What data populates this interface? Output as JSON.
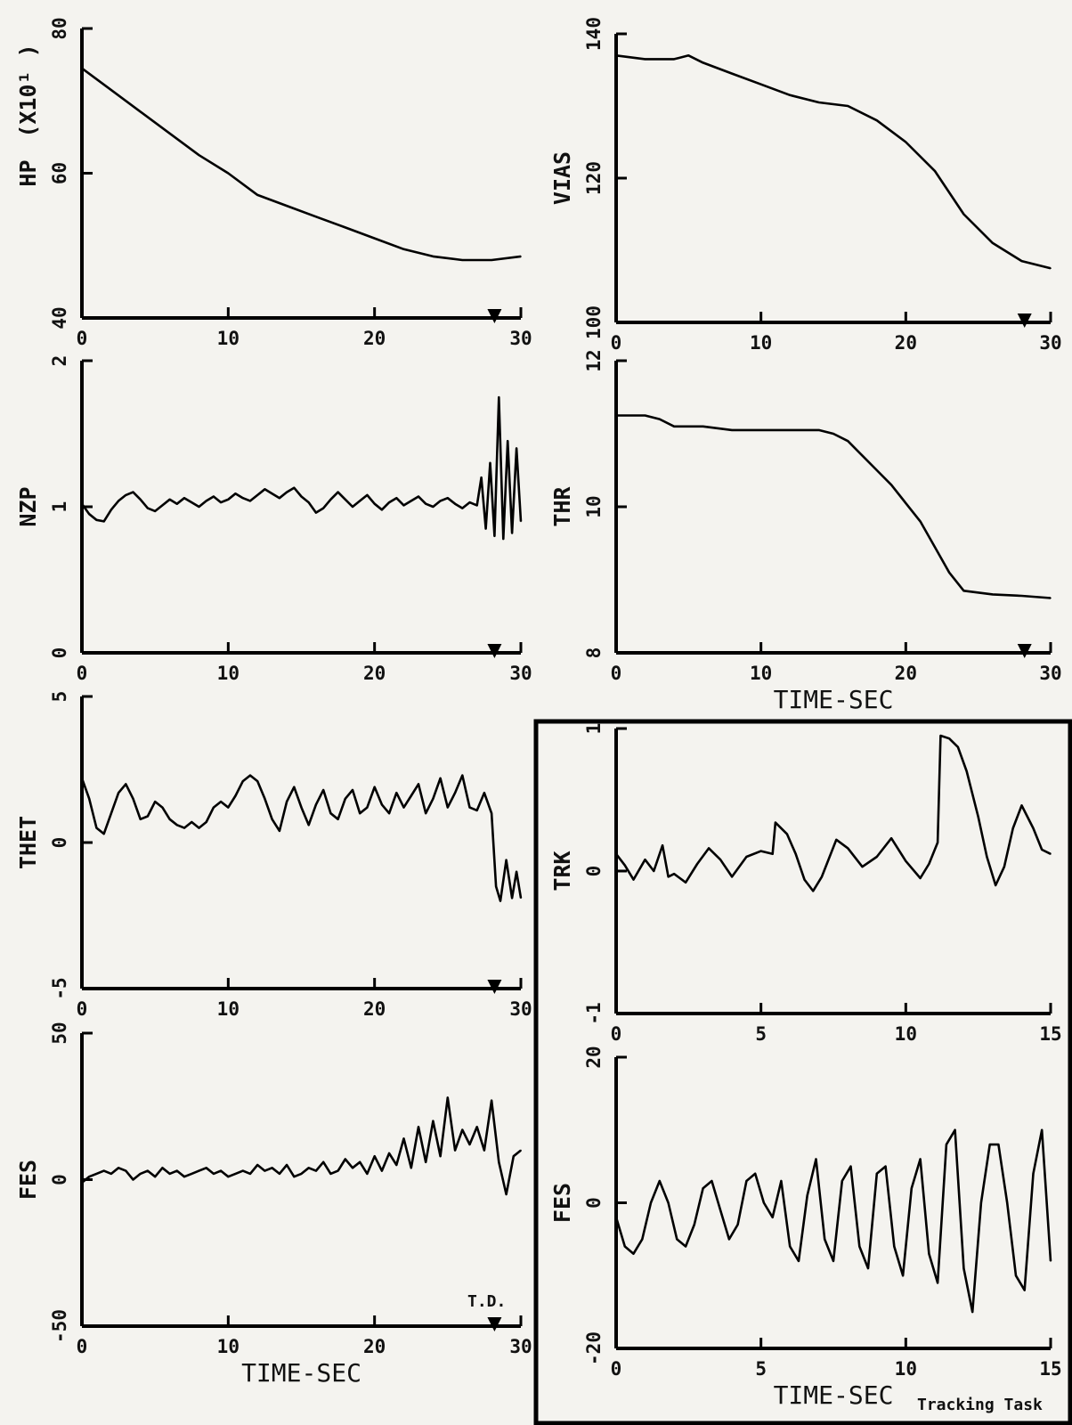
{
  "figure": {
    "inset_note": "Tracking Task",
    "td_label": "T.D."
  },
  "chart_data": [
    {
      "id": "hp",
      "type": "line",
      "ylabel": "HP",
      "ylabel_suffix": "(X10¹ )",
      "xlabel": "",
      "xlim": [
        0,
        30
      ],
      "ylim": [
        40,
        80
      ],
      "xticks": [
        "0",
        "10",
        "20",
        "30"
      ],
      "yticks": [
        "40",
        "60",
        "80"
      ],
      "touchdown_marker_x": 28.2,
      "grid": false,
      "x": [
        0,
        2,
        4,
        6,
        8,
        10,
        12,
        14,
        16,
        18,
        20,
        22,
        24,
        26,
        28,
        30
      ],
      "y": [
        74.5,
        71.5,
        68.5,
        65.5,
        62.5,
        60,
        57,
        55.5,
        54,
        52.5,
        51,
        49.5,
        48.5,
        48,
        48,
        48.5
      ]
    },
    {
      "id": "vias",
      "type": "line",
      "ylabel": "VIAS",
      "xlabel": "",
      "xlim": [
        0,
        30
      ],
      "ylim": [
        100,
        140
      ],
      "xticks": [
        "0",
        "10",
        "20",
        "30"
      ],
      "yticks": [
        "100",
        "120",
        "140"
      ],
      "touchdown_marker_x": 28.2,
      "grid": false,
      "x": [
        0,
        2,
        4,
        5,
        6,
        8,
        10,
        12,
        14,
        16,
        18,
        20,
        22,
        24,
        26,
        28,
        30
      ],
      "y": [
        137,
        136.5,
        136.5,
        137,
        136,
        134.5,
        133,
        131.5,
        130.5,
        130,
        128,
        125,
        121,
        115,
        111,
        108.5,
        107.5
      ]
    },
    {
      "id": "nzp",
      "type": "line",
      "ylabel": "NZP",
      "xlabel": "",
      "xlim": [
        0,
        30
      ],
      "ylim": [
        0,
        2
      ],
      "xticks": [
        "0",
        "10",
        "20",
        "30"
      ],
      "yticks": [
        "0",
        "1",
        "2"
      ],
      "touchdown_marker_x": 28.2,
      "grid": false,
      "x": [
        0,
        0.5,
        1,
        1.5,
        2,
        2.5,
        3,
        3.5,
        4,
        4.5,
        5,
        5.5,
        6,
        6.5,
        7,
        7.5,
        8,
        8.5,
        9,
        9.5,
        10,
        10.5,
        11,
        11.5,
        12,
        12.5,
        13,
        13.5,
        14,
        14.5,
        15,
        15.5,
        16,
        16.5,
        17,
        17.5,
        18,
        18.5,
        19,
        19.5,
        20,
        20.5,
        21,
        21.5,
        22,
        22.5,
        23,
        23.5,
        24,
        24.5,
        25,
        25.5,
        26,
        26.5,
        27,
        27.3,
        27.6,
        27.9,
        28.2,
        28.5,
        28.8,
        29.1,
        29.4,
        29.7,
        30
      ],
      "y": [
        1.02,
        0.95,
        0.91,
        0.9,
        0.98,
        1.04,
        1.08,
        1.1,
        1.05,
        0.99,
        0.97,
        1.01,
        1.05,
        1.02,
        1.06,
        1.03,
        1.0,
        1.04,
        1.07,
        1.03,
        1.05,
        1.09,
        1.06,
        1.04,
        1.08,
        1.12,
        1.09,
        1.06,
        1.1,
        1.13,
        1.07,
        1.03,
        0.96,
        0.99,
        1.05,
        1.1,
        1.05,
        1.0,
        1.04,
        1.08,
        1.02,
        0.98,
        1.03,
        1.06,
        1.01,
        1.04,
        1.07,
        1.02,
        1.0,
        1.04,
        1.06,
        1.02,
        0.99,
        1.03,
        1.01,
        1.2,
        0.85,
        1.3,
        0.8,
        1.75,
        0.78,
        1.45,
        0.82,
        1.4,
        0.9
      ]
    },
    {
      "id": "thr",
      "type": "line",
      "ylabel": "THR",
      "xlabel": "TIME-SEC",
      "xlim": [
        0,
        30
      ],
      "ylim": [
        8,
        12
      ],
      "xticks": [
        "0",
        "10",
        "20",
        "30"
      ],
      "yticks": [
        "8",
        "10",
        "12"
      ],
      "touchdown_marker_x": 28.2,
      "grid": false,
      "x": [
        0,
        1,
        2,
        3,
        4,
        5,
        6,
        8,
        10,
        12,
        14,
        15,
        16,
        17,
        18,
        19,
        20,
        21,
        22,
        23,
        24,
        26,
        28,
        30
      ],
      "y": [
        11.25,
        11.25,
        11.25,
        11.2,
        11.1,
        11.1,
        11.1,
        11.05,
        11.05,
        11.05,
        11.05,
        11.0,
        10.9,
        10.7,
        10.5,
        10.3,
        10.05,
        9.8,
        9.45,
        9.1,
        8.85,
        8.8,
        8.78,
        8.75
      ]
    },
    {
      "id": "thet",
      "type": "line",
      "ylabel": "THET",
      "xlabel": "",
      "xlim": [
        0,
        30
      ],
      "ylim": [
        -5,
        5
      ],
      "xticks": [
        "0",
        "10",
        "20",
        "30"
      ],
      "yticks": [
        "-5",
        "0",
        "5"
      ],
      "touchdown_marker_x": 28.2,
      "grid": false,
      "x": [
        0,
        0.5,
        1,
        1.5,
        2,
        2.5,
        3,
        3.5,
        4,
        4.5,
        5,
        5.5,
        6,
        6.5,
        7,
        7.5,
        8,
        8.5,
        9,
        9.5,
        10,
        10.5,
        11,
        11.5,
        12,
        12.5,
        13,
        13.5,
        14,
        14.5,
        15,
        15.5,
        16,
        16.5,
        17,
        17.5,
        18,
        18.5,
        19,
        19.5,
        20,
        20.5,
        21,
        21.5,
        22,
        22.5,
        23,
        23.5,
        24,
        24.5,
        25,
        25.5,
        26,
        26.5,
        27,
        27.5,
        28,
        28.3,
        28.6,
        29,
        29.4,
        29.7,
        30
      ],
      "y": [
        2.2,
        1.5,
        0.5,
        0.3,
        1.0,
        1.7,
        2.0,
        1.5,
        0.8,
        0.9,
        1.4,
        1.2,
        0.8,
        0.6,
        0.5,
        0.7,
        0.5,
        0.7,
        1.2,
        1.4,
        1.2,
        1.6,
        2.1,
        2.3,
        2.1,
        1.5,
        0.8,
        0.4,
        1.4,
        1.9,
        1.2,
        0.6,
        1.3,
        1.8,
        1.0,
        0.8,
        1.5,
        1.8,
        1.0,
        1.2,
        1.9,
        1.3,
        1.0,
        1.7,
        1.2,
        1.6,
        2.0,
        1.0,
        1.5,
        2.2,
        1.2,
        1.7,
        2.3,
        1.2,
        1.1,
        1.7,
        1.0,
        -1.5,
        -2.0,
        -0.6,
        -1.9,
        -1.0,
        -1.9
      ]
    },
    {
      "id": "fes",
      "type": "line",
      "ylabel": "FES",
      "xlabel": "TIME-SEC",
      "xlim": [
        0,
        30
      ],
      "ylim": [
        -50,
        50
      ],
      "xticks": [
        "0",
        "10",
        "20",
        "30"
      ],
      "yticks": [
        "-50",
        "0",
        "50"
      ],
      "touchdown_marker_x": 28.2,
      "grid": false,
      "x": [
        0,
        0.5,
        1,
        1.5,
        2,
        2.5,
        3,
        3.5,
        4,
        4.5,
        5,
        5.5,
        6,
        6.5,
        7,
        7.5,
        8,
        8.5,
        9,
        9.5,
        10,
        10.5,
        11,
        11.5,
        12,
        12.5,
        13,
        13.5,
        14,
        14.5,
        15,
        15.5,
        16,
        16.5,
        17,
        17.5,
        18,
        18.5,
        19,
        19.5,
        20,
        20.5,
        21,
        21.5,
        22,
        22.5,
        23,
        23.5,
        24,
        24.5,
        25,
        25.5,
        26,
        26.5,
        27,
        27.5,
        28,
        28.5,
        29,
        29.5,
        30
      ],
      "y": [
        -1,
        1,
        2,
        3,
        2,
        4,
        3,
        0,
        2,
        3,
        1,
        4,
        2,
        3,
        1,
        2,
        3,
        4,
        2,
        3,
        1,
        2,
        3,
        2,
        5,
        3,
        4,
        2,
        5,
        1,
        2,
        4,
        3,
        6,
        2,
        3,
        7,
        4,
        6,
        2,
        8,
        3,
        9,
        5,
        14,
        4,
        18,
        6,
        20,
        8,
        28,
        10,
        17,
        12,
        18,
        10,
        27,
        6,
        -5,
        8,
        10
      ]
    },
    {
      "id": "trk",
      "type": "line",
      "ylabel": "TRK",
      "xlabel": "",
      "xlim": [
        0,
        15
      ],
      "ylim": [
        -1,
        1
      ],
      "xticks": [
        "0",
        "5",
        "10",
        "15"
      ],
      "yticks": [
        "-1",
        "0",
        "1"
      ],
      "grid": false,
      "x": [
        0,
        0.3,
        0.6,
        1.0,
        1.3,
        1.6,
        1.8,
        2.0,
        2.4,
        2.8,
        3.2,
        3.6,
        4.0,
        4.5,
        5.0,
        5.4,
        5.5,
        5.9,
        6.2,
        6.5,
        6.8,
        7.1,
        7.6,
        8.0,
        8.5,
        9.0,
        9.5,
        10.0,
        10.5,
        10.8,
        11.1,
        11.2,
        11.5,
        11.8,
        12.1,
        12.5,
        12.8,
        13.1,
        13.4,
        13.7,
        14.0,
        14.4,
        14.7,
        15.0
      ],
      "y": [
        0.12,
        0.04,
        -0.06,
        0.08,
        0.0,
        0.18,
        -0.04,
        -0.02,
        -0.08,
        0.05,
        0.16,
        0.08,
        -0.04,
        0.1,
        0.14,
        0.12,
        0.34,
        0.26,
        0.12,
        -0.06,
        -0.14,
        -0.04,
        0.22,
        0.16,
        0.03,
        0.1,
        0.23,
        0.07,
        -0.05,
        0.05,
        0.2,
        0.95,
        0.93,
        0.87,
        0.7,
        0.38,
        0.1,
        -0.1,
        0.03,
        0.3,
        0.46,
        0.3,
        0.15,
        0.12
      ]
    },
    {
      "id": "fes_tracking",
      "type": "line",
      "ylabel": "FES",
      "xlabel": "TIME-SEC",
      "xlim": [
        0,
        15
      ],
      "ylim": [
        -20,
        20
      ],
      "xticks": [
        "0",
        "5",
        "10",
        "15"
      ],
      "yticks": [
        "-20",
        "0",
        "20"
      ],
      "grid": false,
      "x": [
        0,
        0.3,
        0.6,
        0.9,
        1.2,
        1.5,
        1.8,
        2.1,
        2.4,
        2.7,
        3.0,
        3.3,
        3.6,
        3.9,
        4.2,
        4.5,
        4.8,
        5.1,
        5.4,
        5.7,
        6.0,
        6.3,
        6.6,
        6.9,
        7.2,
        7.5,
        7.8,
        8.1,
        8.4,
        8.7,
        9.0,
        9.3,
        9.6,
        9.9,
        10.2,
        10.5,
        10.8,
        11.1,
        11.4,
        11.7,
        12.0,
        12.3,
        12.6,
        12.9,
        13.2,
        13.5,
        13.8,
        14.1,
        14.4,
        14.7,
        15.0
      ],
      "y": [
        -2,
        -6,
        -7,
        -5,
        0,
        3,
        0,
        -5,
        -6,
        -3,
        2,
        3,
        -1,
        -5,
        -3,
        3,
        4,
        0,
        -2,
        3,
        -6,
        -8,
        1,
        6,
        -5,
        -8,
        3,
        5,
        -6,
        -9,
        4,
        5,
        -6,
        -10,
        2,
        6,
        -7,
        -11,
        8,
        10,
        -9,
        -15,
        0,
        8,
        8,
        0,
        -10,
        -12,
        4,
        10,
        -8
      ]
    }
  ]
}
